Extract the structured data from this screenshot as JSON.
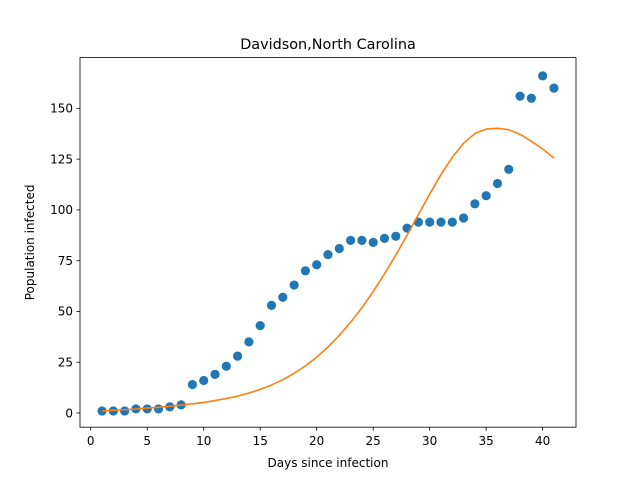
{
  "chart_data": {
    "type": "scatter",
    "title": "Davidson,North Carolina",
    "xlabel": "Days since infection",
    "ylabel": "Population infected",
    "xlim": [
      -0.95,
      42.95
    ],
    "ylim": [
      -7,
      175
    ],
    "xticks": [
      0,
      5,
      10,
      15,
      20,
      25,
      30,
      35,
      40
    ],
    "yticks": [
      0,
      25,
      50,
      75,
      100,
      125,
      150
    ],
    "grid": false,
    "legend": "none",
    "series": [
      {
        "kind": "scatter",
        "color": "#1f77b4",
        "x": [
          1,
          2,
          3,
          4,
          5,
          6,
          7,
          8,
          9,
          10,
          11,
          12,
          13,
          14,
          15,
          16,
          17,
          18,
          19,
          20,
          21,
          22,
          23,
          24,
          25,
          26,
          27,
          28,
          29,
          30,
          31,
          32,
          33,
          34,
          35,
          36,
          37,
          38,
          39,
          40,
          41
        ],
        "y": [
          1,
          1,
          1,
          2,
          2,
          2,
          3,
          4,
          14,
          16,
          19,
          23,
          28,
          35,
          43,
          53,
          57,
          63,
          70,
          73,
          78,
          81,
          85,
          85,
          84,
          86,
          87,
          91,
          94,
          94,
          94,
          94,
          96,
          103,
          107,
          113,
          120,
          156,
          155,
          166,
          160
        ]
      },
      {
        "kind": "line",
        "color": "#ff7f0e",
        "x": [
          1,
          2,
          3,
          4,
          5,
          6,
          7,
          8,
          9,
          10,
          11,
          12,
          13,
          14,
          15,
          16,
          17,
          18,
          19,
          20,
          21,
          22,
          23,
          24,
          25,
          26,
          27,
          28,
          29,
          30,
          31,
          32,
          33,
          34,
          35,
          36,
          37,
          38,
          39,
          40,
          41
        ],
        "y": [
          1,
          1.3,
          1.6,
          2,
          2.4,
          2.8,
          3.3,
          3.9,
          4.5,
          5.2,
          6.1,
          7.1,
          8.3,
          9.8,
          11.6,
          13.8,
          16.4,
          19.5,
          23.2,
          27.5,
          32.5,
          38.2,
          44.7,
          51.8,
          59.8,
          68.5,
          77.8,
          87.6,
          97.7,
          107.8,
          117.4,
          125.9,
          132.8,
          137.6,
          139.8,
          140.2,
          139.5,
          137.2,
          133.8,
          130,
          125.5
        ]
      }
    ]
  }
}
